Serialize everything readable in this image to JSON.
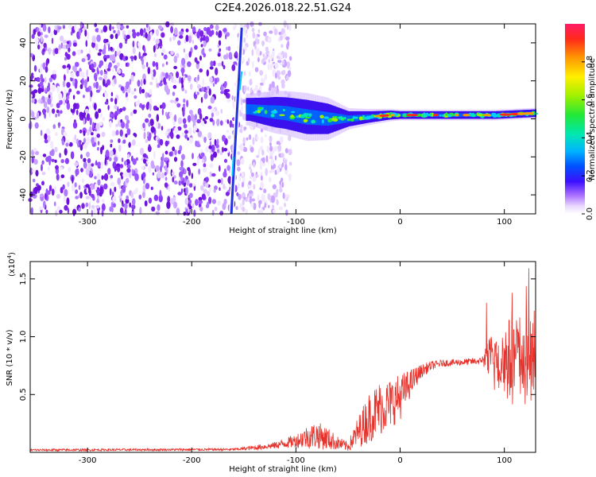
{
  "title": "C2E4.2026.018.22.51.G24",
  "colors": {
    "snr_line": "#e8312a",
    "axis": "#000000",
    "background": "#ffffff"
  },
  "chart_data": [
    {
      "type": "heatmap",
      "title": "C2E4.2026.018.22.51.G24",
      "xlabel": "Height of straight line (km)",
      "ylabel": "Frequency (Hz)",
      "xlim": [
        -355,
        130
      ],
      "ylim": [
        -50,
        50
      ],
      "xticks": [
        -300,
        -200,
        -100,
        0,
        100
      ],
      "yticks": [
        -40,
        -20,
        0,
        20,
        40
      ],
      "colorbar": {
        "label": "Normalized spectral amplitude",
        "range": [
          0,
          1
        ],
        "ticks": [
          0.0,
          0.2,
          0.4,
          0.6,
          0.8
        ]
      },
      "features": {
        "noise_region_x": [
          -355,
          -125
        ],
        "streak_line": {
          "x_at_top": -158,
          "x_at_bottom": -158,
          "y_range": [
            -50,
            48
          ]
        },
        "band_center_hz": [
          [
            -145,
            5
          ],
          [
            -130,
            4
          ],
          [
            -110,
            3
          ],
          [
            -90,
            1
          ],
          [
            -70,
            0
          ],
          [
            -50,
            0
          ],
          [
            -30,
            1
          ],
          [
            -10,
            2
          ],
          [
            10,
            2
          ],
          [
            40,
            2
          ],
          [
            60,
            2
          ],
          [
            90,
            2
          ],
          [
            130,
            3
          ]
        ],
        "band_halfwidth_hz": [
          [
            -145,
            6
          ],
          [
            -120,
            8
          ],
          [
            -90,
            9
          ],
          [
            -70,
            8
          ],
          [
            -50,
            4
          ],
          [
            -30,
            3
          ],
          [
            0,
            2
          ],
          [
            60,
            2
          ],
          [
            130,
            2
          ]
        ]
      }
    },
    {
      "type": "line",
      "title": "",
      "xlabel": "Height of straight line (km)",
      "ylabel": "SNR (10 * v/v)",
      "multiplier_base": "(x10",
      "multiplier_exp": "4",
      "multiplier_close": ")",
      "xlim": [
        -355,
        130
      ],
      "ylim": [
        0,
        1.65
      ],
      "xticks": [
        -300,
        -200,
        -100,
        0,
        100
      ],
      "yticks": [
        0.5,
        1.0,
        1.5
      ],
      "ytick_labels": [
        "0.5",
        "1.0",
        "1.5"
      ],
      "series": [
        {
          "name": "SNR",
          "envelope_x": [
            -355,
            -160,
            -140,
            -120,
            -100,
            -90,
            -80,
            -70,
            -60,
            -50,
            -40,
            -30,
            -20,
            -10,
            0,
            10,
            20,
            30,
            40,
            60,
            78,
            90,
            100,
            110,
            120,
            130
          ],
          "envelope_mean": [
            0.02,
            0.025,
            0.04,
            0.06,
            0.1,
            0.13,
            0.15,
            0.12,
            0.08,
            0.05,
            0.18,
            0.3,
            0.38,
            0.42,
            0.48,
            0.6,
            0.7,
            0.75,
            0.77,
            0.78,
            0.79,
            0.8,
            0.8,
            0.8,
            0.8,
            0.8
          ],
          "envelope_noise": [
            0.01,
            0.01,
            0.02,
            0.03,
            0.06,
            0.1,
            0.12,
            0.1,
            0.06,
            0.04,
            0.14,
            0.22,
            0.24,
            0.22,
            0.2,
            0.12,
            0.06,
            0.04,
            0.03,
            0.03,
            0.03,
            0.3,
            0.35,
            0.4,
            0.45,
            0.45
          ]
        }
      ]
    }
  ]
}
